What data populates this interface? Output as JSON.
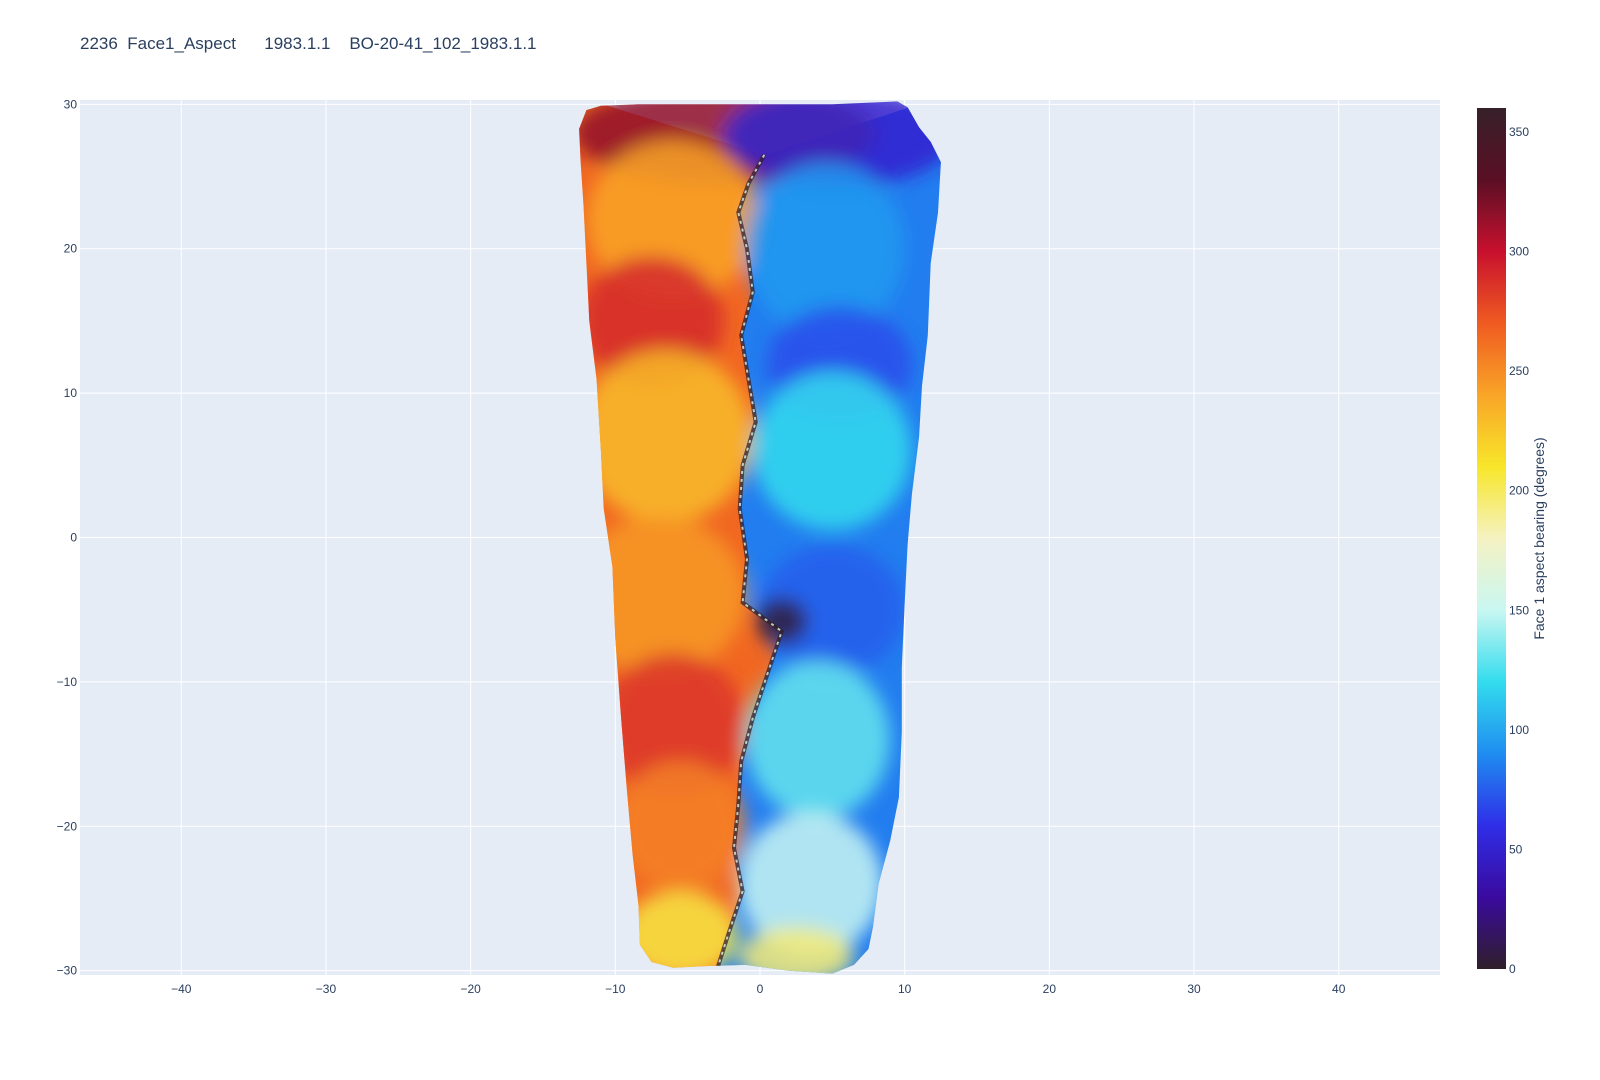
{
  "chart_data": {
    "type": "heatmap",
    "title": "2236  Face1_Aspect      1983.1.1    BO-20-41_102_1983.1.1",
    "x_ticks": [
      -40,
      -30,
      -20,
      -10,
      0,
      10,
      20,
      30,
      40
    ],
    "y_ticks": [
      30,
      20,
      10,
      0,
      -10,
      -20,
      -30
    ],
    "xlim": [
      -47,
      47
    ],
    "ylim": [
      -30.3,
      30.3
    ],
    "grid": true,
    "colorbar": {
      "title": "Face 1 aspect bearing (degrees)",
      "ticks": [
        0,
        50,
        100,
        150,
        200,
        250,
        300,
        350
      ],
      "range": [
        0,
        360
      ],
      "colorscale": [
        "#2f1f2a",
        "#3a0a9e",
        "#2f2ee8",
        "#1f8df0",
        "#33dcee",
        "#c9f7f2",
        "#f5f2c2",
        "#f7e62a",
        "#f9a527",
        "#ef5b21",
        "#c8102e",
        "#5a0f25",
        "#362029"
      ]
    },
    "outline": [
      [
        -12.5,
        28.3
      ],
      [
        -12.0,
        29.6
      ],
      [
        -11.0,
        29.9
      ],
      [
        -8.5,
        30.0
      ],
      [
        -4.0,
        30.0
      ],
      [
        1.0,
        30.0
      ],
      [
        5.0,
        30.0
      ],
      [
        9.5,
        30.2
      ],
      [
        10.2,
        29.8
      ],
      [
        11.0,
        28.4
      ],
      [
        11.8,
        27.4
      ],
      [
        12.5,
        26.0
      ],
      [
        12.3,
        22.5
      ],
      [
        11.8,
        19.0
      ],
      [
        11.6,
        14.0
      ],
      [
        11.2,
        10.5
      ],
      [
        11.0,
        7.0
      ],
      [
        10.5,
        3.0
      ],
      [
        10.2,
        -0.5
      ],
      [
        10.0,
        -4.5
      ],
      [
        9.8,
        -9.0
      ],
      [
        9.8,
        -13.5
      ],
      [
        9.6,
        -18.0
      ],
      [
        9.0,
        -21.0
      ],
      [
        8.2,
        -24.0
      ],
      [
        7.8,
        -27.0
      ],
      [
        7.5,
        -28.5
      ],
      [
        6.5,
        -29.6
      ],
      [
        5.0,
        -30.2
      ],
      [
        2.0,
        -30.0
      ],
      [
        -1.0,
        -29.6
      ],
      [
        -4.0,
        -29.7
      ],
      [
        -6.0,
        -29.8
      ],
      [
        -7.5,
        -29.4
      ],
      [
        -8.3,
        -28.2
      ],
      [
        -8.4,
        -25.5
      ],
      [
        -8.8,
        -22.0
      ],
      [
        -9.2,
        -17.5
      ],
      [
        -9.6,
        -12.5
      ],
      [
        -10.0,
        -7.0
      ],
      [
        -10.2,
        -2.0
      ],
      [
        -10.8,
        2.0
      ],
      [
        -11.0,
        6.0
      ],
      [
        -11.3,
        11.0
      ],
      [
        -11.8,
        15.0
      ],
      [
        -12.0,
        19.0
      ],
      [
        -12.2,
        23.0
      ],
      [
        -12.4,
        26.0
      ]
    ],
    "ridge_line": [
      [
        0.3,
        26.5
      ],
      [
        -0.8,
        24.5
      ],
      [
        -1.5,
        22.5
      ],
      [
        -0.9,
        20.0
      ],
      [
        -0.5,
        17.0
      ],
      [
        -1.3,
        14.0
      ],
      [
        -0.8,
        11.0
      ],
      [
        -0.3,
        8.0
      ],
      [
        -1.2,
        5.0
      ],
      [
        -1.4,
        2.0
      ],
      [
        -0.9,
        -1.5
      ],
      [
        -1.2,
        -4.5
      ],
      [
        1.5,
        -6.5
      ],
      [
        0.5,
        -9.5
      ],
      [
        -0.5,
        -12.5
      ],
      [
        -1.3,
        -15.5
      ],
      [
        -1.5,
        -18.5
      ],
      [
        -1.8,
        -21.5
      ],
      [
        -1.2,
        -24.5
      ],
      [
        -2.2,
        -27.5
      ],
      [
        -3.0,
        -30.0
      ]
    ],
    "scars": [
      {
        "x": -2.5,
        "y": 28.0,
        "rx": 10.5,
        "ry": 3.5,
        "value": 315
      },
      {
        "x": 5.5,
        "y": 27.8,
        "rx": 8.0,
        "ry": 3.5,
        "value": 50
      },
      {
        "x": -6.0,
        "y": 22.0,
        "rx": 6.0,
        "ry": 5.5,
        "value": 240
      },
      {
        "x": -7.5,
        "y": 15.0,
        "rx": 5.0,
        "ry": 4.5,
        "value": 290
      },
      {
        "x": -6.5,
        "y": 7.0,
        "rx": 6.0,
        "ry": 6.0,
        "value": 230
      },
      {
        "x": -7.0,
        "y": -4.0,
        "rx": 6.0,
        "ry": 5.5,
        "value": 245
      },
      {
        "x": -6.0,
        "y": -13.0,
        "rx": 5.0,
        "ry": 5.0,
        "value": 285
      },
      {
        "x": -5.5,
        "y": -20.0,
        "rx": 4.5,
        "ry": 4.5,
        "value": 255
      },
      {
        "x": -5.5,
        "y": -27.5,
        "rx": 4.0,
        "ry": 3.0,
        "value": 205
      },
      {
        "x": 4.5,
        "y": 20.0,
        "rx": 5.5,
        "ry": 6.0,
        "value": 95
      },
      {
        "x": 5.5,
        "y": 12.0,
        "rx": 5.0,
        "ry": 4.0,
        "value": 70
      },
      {
        "x": 5.0,
        "y": 6.0,
        "rx": 5.5,
        "ry": 5.5,
        "value": 120
      },
      {
        "x": 5.0,
        "y": -5.0,
        "rx": 5.0,
        "ry": 4.5,
        "value": 75
      },
      {
        "x": 4.0,
        "y": -14.0,
        "rx": 5.0,
        "ry": 5.5,
        "value": 130
      },
      {
        "x": 3.5,
        "y": -24.0,
        "rx": 5.0,
        "ry": 5.0,
        "value": 150
      },
      {
        "x": 2.5,
        "y": -29.0,
        "rx": 4.0,
        "ry": 2.0,
        "value": 195
      },
      {
        "x": 1.5,
        "y": -5.8,
        "rx": 1.8,
        "ry": 1.6,
        "value": 5
      }
    ]
  }
}
